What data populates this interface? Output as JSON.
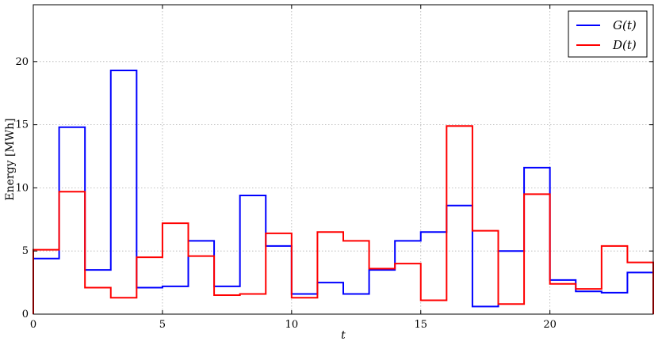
{
  "chart_data": {
    "type": "line",
    "step": "post",
    "x": [
      0,
      1,
      2,
      3,
      4,
      5,
      6,
      7,
      8,
      9,
      10,
      11,
      12,
      13,
      14,
      15,
      16,
      17,
      18,
      19,
      20,
      21,
      22,
      23
    ],
    "series": [
      {
        "name": "G(t)",
        "color": "#0000ff",
        "values": [
          4.4,
          14.8,
          3.5,
          19.3,
          2.1,
          2.2,
          5.8,
          2.2,
          9.4,
          5.4,
          1.6,
          2.5,
          1.6,
          3.5,
          5.8,
          6.5,
          8.6,
          0.6,
          5.0,
          11.6,
          2.7,
          1.8,
          1.7,
          3.3
        ]
      },
      {
        "name": "D(t)",
        "color": "#ff0000",
        "values": [
          5.1,
          9.7,
          2.1,
          1.3,
          4.5,
          7.2,
          4.6,
          1.5,
          1.6,
          6.4,
          1.3,
          6.5,
          5.8,
          3.6,
          4.0,
          1.1,
          14.9,
          6.6,
          0.8,
          9.5,
          2.4,
          2.0,
          5.4,
          4.1
        ]
      }
    ],
    "xlabel": "t",
    "ylabel": "Energy [MWh]",
    "xlim": [
      0,
      24
    ],
    "ylim": [
      0,
      24.5
    ],
    "xticks": [
      0,
      5,
      10,
      15,
      20
    ],
    "yticks": [
      0,
      5,
      10,
      15,
      20
    ],
    "grid": true,
    "legend_position": "top-right"
  }
}
